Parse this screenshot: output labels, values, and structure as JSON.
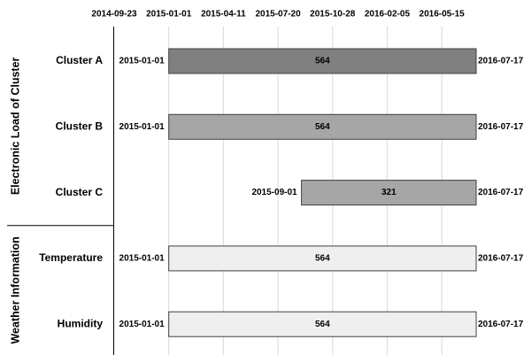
{
  "chart_data": {
    "type": "timeline",
    "xlim": [
      "2014-09-23",
      "2016-07-17"
    ],
    "xticks": [
      "2014-09-23",
      "2015-01-01",
      "2015-04-11",
      "2015-07-20",
      "2015-10-28",
      "2016-02-05",
      "2016-05-15"
    ],
    "grid": true,
    "groups": [
      {
        "name": "Electronic Load of Cluster",
        "rows": [
          {
            "category": "Cluster A",
            "start": "2015-01-01",
            "end": "2016-07-17",
            "value": 564,
            "color": "#808080"
          },
          {
            "category": "Cluster B",
            "start": "2015-01-01",
            "end": "2016-07-17",
            "value": 564,
            "color": "#a6a6a6"
          },
          {
            "category": "Cluster C",
            "start": "2015-09-01",
            "end": "2016-07-17",
            "value": 321,
            "color": "#a6a6a6"
          }
        ]
      },
      {
        "name": "Weather Information",
        "rows": [
          {
            "category": "Temperature",
            "start": "2015-01-01",
            "end": "2016-07-17",
            "value": 564,
            "color": "#efefef"
          },
          {
            "category": "Humidity",
            "start": "2015-01-01",
            "end": "2016-07-17",
            "value": 564,
            "color": "#efefef"
          }
        ]
      }
    ]
  }
}
